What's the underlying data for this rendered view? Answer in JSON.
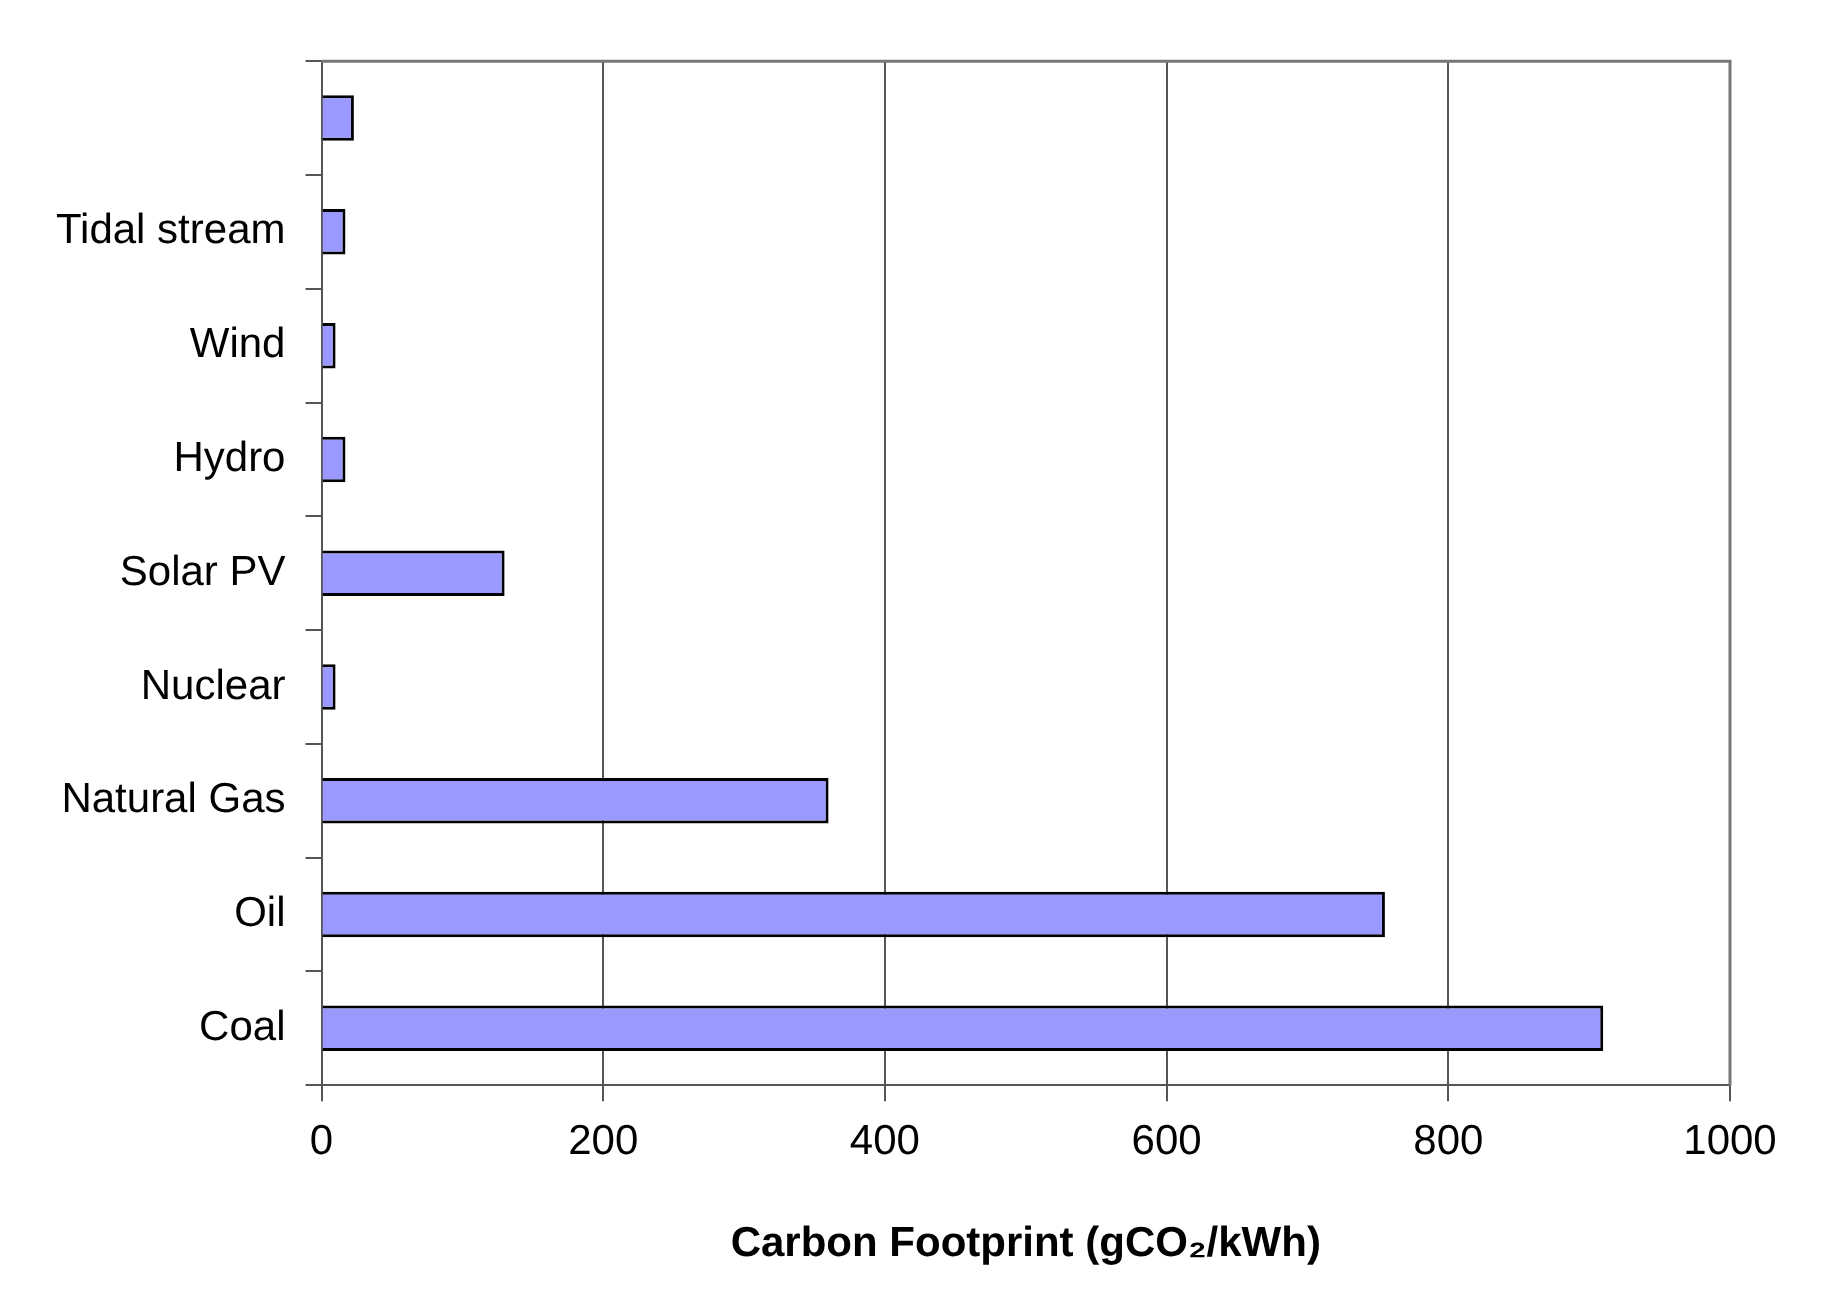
{
  "chart_data": {
    "type": "bar",
    "orientation": "horizontal",
    "xlabel": "Carbon Footprint (gCO₂/kWh)",
    "categories": [
      null,
      "Tidal stream",
      "Wind",
      "Hydro",
      "Solar PV",
      "Nuclear",
      "Natural Gas",
      "Oil",
      "Coal"
    ],
    "values": [
      23,
      17,
      10,
      17,
      130,
      10,
      360,
      755,
      910
    ],
    "color": "#9999ff",
    "xlim": [
      0,
      1000
    ],
    "xticks": [
      0,
      200,
      400,
      600,
      800,
      1000
    ],
    "grid": "x",
    "legend": false
  }
}
